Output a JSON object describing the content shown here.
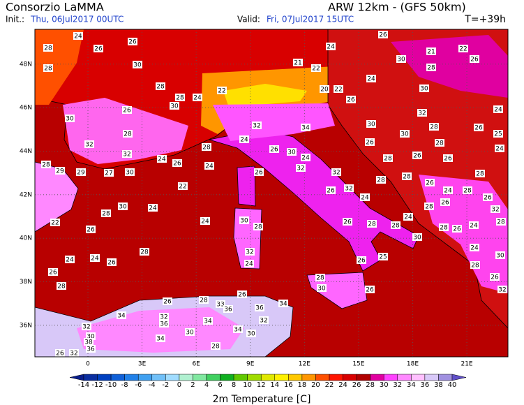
{
  "header": {
    "title": "Consorzio LaMMA",
    "model": "ARW 12km - (GFS 50km)",
    "init_label": "Init.:",
    "init": "Thu, 06Jul2017 00UTC",
    "valid_label": "Valid:",
    "valid": "Fri, 07Jul2017 15UTC",
    "lead": "T=+39h"
  },
  "map": {
    "lon_range": [
      -2.94,
      23.28
    ],
    "lat_range": [
      49.6,
      34.55
    ],
    "lon_ticks": [
      {
        "value": 0,
        "label": "0"
      },
      {
        "value": 3,
        "label": "3E"
      },
      {
        "value": 6,
        "label": "6E"
      },
      {
        "value": 9,
        "label": "9E"
      },
      {
        "value": 12,
        "label": "12E"
      },
      {
        "value": 15,
        "label": "15E"
      },
      {
        "value": 18,
        "label": "18E"
      },
      {
        "value": 21,
        "label": "21E"
      }
    ],
    "lat_ticks": [
      {
        "value": 48,
        "label": "48N"
      },
      {
        "value": 46,
        "label": "46N"
      },
      {
        "value": 44,
        "label": "44N"
      },
      {
        "value": 42,
        "label": "42N"
      },
      {
        "value": 40,
        "label": "40N"
      },
      {
        "value": 38,
        "label": "38N"
      },
      {
        "value": 36,
        "label": "36N"
      }
    ],
    "grid": true
  },
  "stations": [
    24,
    28,
    26,
    26,
    28,
    30,
    28,
    26,
    28,
    30,
    24,
    22,
    21,
    22,
    24,
    26,
    30,
    21,
    22,
    26,
    28,
    30,
    24,
    22,
    20,
    26,
    32,
    24,
    28,
    30,
    30,
    26,
    25,
    34,
    32,
    24,
    30,
    26,
    24,
    26,
    28,
    26,
    28,
    24,
    32,
    28,
    32,
    24,
    26,
    24,
    28,
    30,
    28,
    29,
    29,
    27,
    30,
    22,
    26,
    32,
    32,
    26,
    32,
    24,
    28,
    28,
    26,
    28,
    26,
    24,
    28,
    28,
    26,
    26,
    32,
    30,
    24,
    28,
    22,
    24,
    30,
    28,
    26,
    28,
    28,
    24,
    30,
    28,
    26,
    24,
    28,
    26,
    28,
    32,
    24,
    25,
    26,
    24,
    30,
    28,
    24,
    24,
    26,
    26,
    28,
    28,
    30,
    26,
    26,
    32,
    26,
    28,
    26,
    33,
    36,
    36,
    34,
    34,
    32,
    36,
    34,
    32,
    32,
    30,
    30,
    30,
    38,
    36,
    34,
    26,
    32,
    28,
    34
  ],
  "colorbar": {
    "label": "2m Temperature [C]",
    "ticks": [
      -14,
      -12,
      -10,
      -8,
      -6,
      -4,
      -2,
      0,
      2,
      4,
      6,
      8,
      10,
      12,
      14,
      16,
      18,
      20,
      22,
      24,
      26,
      28,
      30,
      32,
      34,
      36,
      38,
      40
    ],
    "colors": [
      "#0a1e8c",
      "#0a2ea0",
      "#0040c0",
      "#1060d8",
      "#2080e8",
      "#40a0f0",
      "#70c0f8",
      "#a0dcff",
      "#b0f0d0",
      "#80e8a0",
      "#40d060",
      "#10b020",
      "#60c800",
      "#a0dc00",
      "#e0e800",
      "#fff000",
      "#ffc800",
      "#ff9600",
      "#ff5000",
      "#ff1400",
      "#d80000",
      "#b00000",
      "#e000a0",
      "#ff40ff",
      "#ff88ff",
      "#ffc0ff",
      "#d8c8f8",
      "#a090e0",
      "#6050c8"
    ]
  }
}
